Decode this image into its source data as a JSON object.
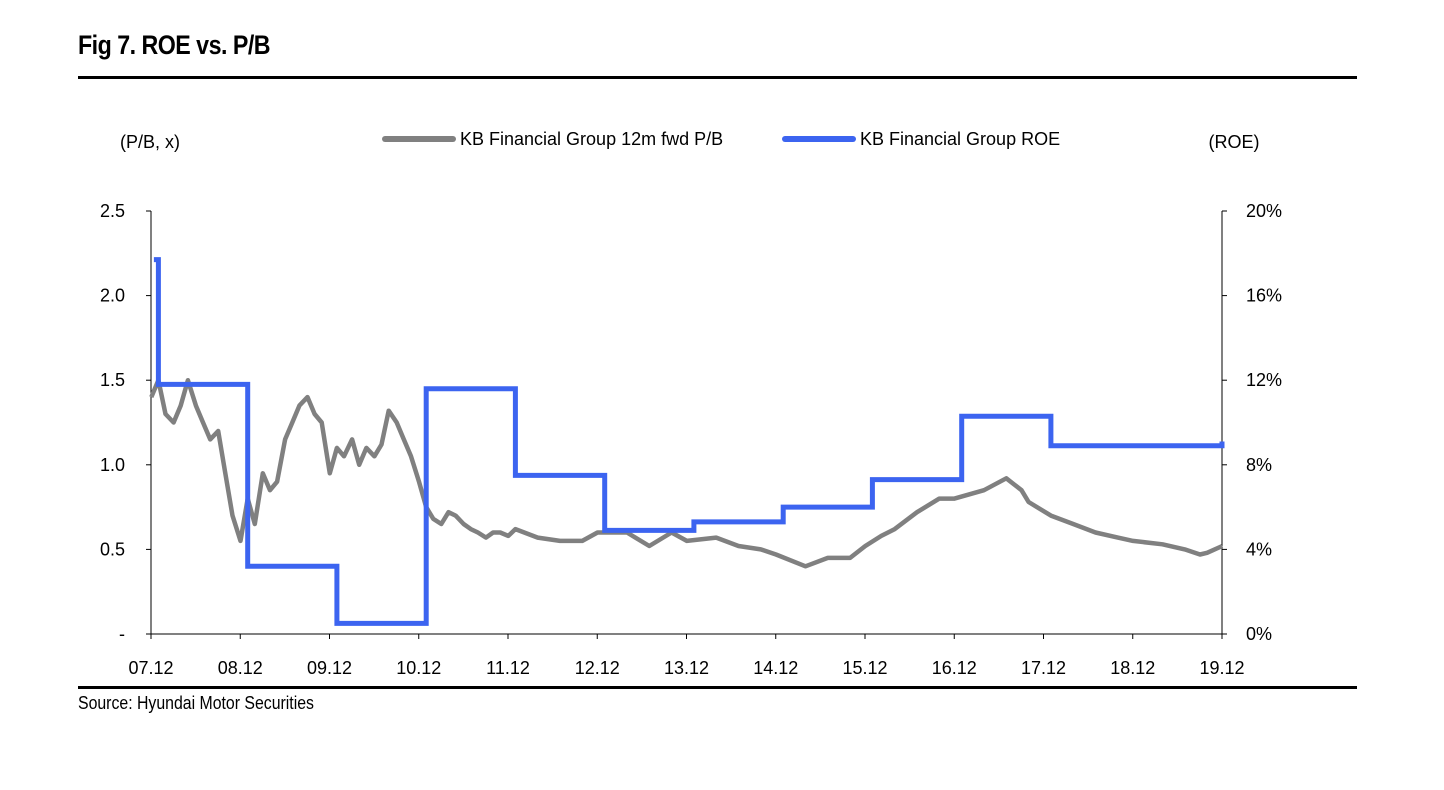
{
  "figure": {
    "title": "Fig 7. ROE vs. P/B",
    "source": "Source: Hyundai Motor Securities"
  },
  "chart_data": {
    "type": "line",
    "left_axis_label": "(P/B, x)",
    "right_axis_label": "(ROE)",
    "x_ticks": [
      "07.12",
      "08.12",
      "09.12",
      "10.12",
      "11.12",
      "12.12",
      "13.12",
      "14.12",
      "15.12",
      "16.12",
      "17.12",
      "18.12",
      "19.12"
    ],
    "x_range": [
      2007.917,
      2019.917
    ],
    "left_axis": {
      "range": [
        0,
        2.5
      ],
      "ticks": [
        0,
        0.5,
        1.0,
        1.5,
        2.0,
        2.5
      ],
      "tick_labels": [
        "-",
        "0.5",
        "1.0",
        "1.5",
        "2.0",
        "2.5"
      ]
    },
    "right_axis": {
      "range": [
        0,
        20
      ],
      "ticks": [
        0,
        4,
        8,
        12,
        16,
        20
      ],
      "tick_labels": [
        "0%",
        "4%",
        "8%",
        "12%",
        "16%",
        "20%"
      ]
    },
    "legend_position": "top-center",
    "series": [
      {
        "name": "KB Financial Group 12m fwd P/B",
        "axis": "left",
        "color": "#808080",
        "x": [
          2007.92,
          2008.0,
          2008.08,
          2008.17,
          2008.25,
          2008.33,
          2008.42,
          2008.5,
          2008.58,
          2008.67,
          2008.75,
          2008.83,
          2008.92,
          2009.0,
          2009.08,
          2009.17,
          2009.25,
          2009.33,
          2009.42,
          2009.5,
          2009.58,
          2009.67,
          2009.75,
          2009.83,
          2009.92,
          2010.0,
          2010.08,
          2010.17,
          2010.25,
          2010.33,
          2010.42,
          2010.5,
          2010.58,
          2010.67,
          2010.75,
          2010.83,
          2010.92,
          2011.0,
          2011.08,
          2011.17,
          2011.25,
          2011.33,
          2011.42,
          2011.5,
          2011.58,
          2011.67,
          2011.75,
          2011.83,
          2011.92,
          2012.0,
          2012.25,
          2012.5,
          2012.75,
          2012.92,
          2013.25,
          2013.5,
          2013.75,
          2013.92,
          2014.25,
          2014.5,
          2014.75,
          2014.92,
          2015.25,
          2015.5,
          2015.75,
          2015.92,
          2016.1,
          2016.25,
          2016.5,
          2016.75,
          2016.92,
          2017.25,
          2017.5,
          2017.67,
          2017.75,
          2018.0,
          2018.25,
          2018.5,
          2018.75,
          2018.92,
          2019.25,
          2019.5,
          2019.67,
          2019.75,
          2019.92
        ],
        "values": [
          1.4,
          1.5,
          1.3,
          1.25,
          1.35,
          1.5,
          1.35,
          1.25,
          1.15,
          1.2,
          0.95,
          0.7,
          0.55,
          0.8,
          0.65,
          0.95,
          0.85,
          0.9,
          1.15,
          1.25,
          1.35,
          1.4,
          1.3,
          1.25,
          0.95,
          1.1,
          1.05,
          1.15,
          1.0,
          1.1,
          1.05,
          1.12,
          1.32,
          1.25,
          1.15,
          1.05,
          0.9,
          0.75,
          0.68,
          0.65,
          0.72,
          0.7,
          0.65,
          0.62,
          0.6,
          0.57,
          0.6,
          0.6,
          0.58,
          0.62,
          0.57,
          0.55,
          0.55,
          0.6,
          0.6,
          0.52,
          0.6,
          0.55,
          0.57,
          0.52,
          0.5,
          0.47,
          0.4,
          0.45,
          0.45,
          0.52,
          0.58,
          0.62,
          0.72,
          0.8,
          0.8,
          0.85,
          0.92,
          0.85,
          0.78,
          0.7,
          0.65,
          0.6,
          0.57,
          0.55,
          0.53,
          0.5,
          0.47,
          0.48,
          0.52
        ]
      },
      {
        "name": "KB Financial Group ROE",
        "axis": "right",
        "color": "#3c64f0",
        "step": true,
        "x": [
          2007.95,
          2008.0,
          2009.0,
          2010.0,
          2011.0,
          2012.0,
          2013.0,
          2014.0,
          2015.0,
          2016.0,
          2017.0,
          2018.0,
          2019.917
        ],
        "values": [
          17.7,
          11.8,
          3.2,
          0.5,
          11.6,
          7.5,
          4.9,
          5.3,
          6.0,
          7.3,
          10.3,
          8.9,
          9.1
        ]
      }
    ]
  }
}
